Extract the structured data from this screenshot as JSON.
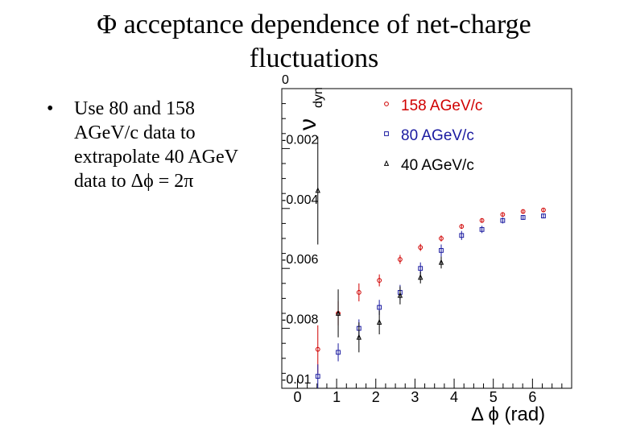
{
  "slide": {
    "title_line1": "Φ acceptance dependence of net-charge",
    "title_line2": "fluctuations",
    "bullet_marker": "•",
    "bullet_lines": [
      "Use 80 and 158",
      "AGeV/c data to",
      "extrapolate 40 AGeV",
      "data to Δϕ = 2π"
    ]
  },
  "chart_data": {
    "type": "scatter",
    "title": "",
    "ylabel_main": "ν",
    "ylabel_sub": "dyn",
    "xlabel": "Δ ϕ (rad)",
    "xlim": [
      -0.4,
      7.0
    ],
    "ylim": [
      -0.01,
      0.0
    ],
    "x_ticks": [
      0,
      1,
      2,
      3,
      4,
      5,
      6
    ],
    "x_tick_labels": [
      "0",
      "1",
      "2",
      "3",
      "4",
      "5",
      "6"
    ],
    "y_ticks": [
      0,
      -0.002,
      -0.004,
      -0.006,
      -0.008,
      -0.01
    ],
    "y_tick_labels": [
      "0",
      "-0.002",
      "-0.004",
      "-0.006",
      "-0.008",
      "-0.01"
    ],
    "legend_position": "top-right",
    "series": [
      {
        "name": "158 AGeV/c",
        "color": "#d00000",
        "marker": "circle",
        "x": [
          0.52,
          1.04,
          1.57,
          2.09,
          2.62,
          3.14,
          3.67,
          4.19,
          4.71,
          5.24,
          5.76,
          6.28
        ],
        "y": [
          -0.0087,
          -0.0075,
          -0.0068,
          -0.0064,
          -0.0057,
          -0.0053,
          -0.005,
          -0.0046,
          -0.0044,
          -0.0042,
          -0.0041,
          -0.00405
        ],
        "err": [
          0.0008,
          0.0004,
          0.0003,
          0.0002,
          0.00015,
          0.00012,
          0.0001,
          8e-05,
          7e-05,
          6e-05,
          6e-05,
          5e-05
        ]
      },
      {
        "name": "80 AGeV/c",
        "color": "#1a1aa0",
        "marker": "square",
        "x": [
          0.52,
          1.04,
          1.57,
          2.09,
          2.62,
          3.14,
          3.67,
          4.19,
          4.71,
          5.24,
          5.76,
          6.28
        ],
        "y": [
          -0.0096,
          -0.0088,
          -0.008,
          -0.0073,
          -0.0068,
          -0.006,
          -0.0054,
          -0.0049,
          -0.0047,
          -0.0044,
          -0.0043,
          -0.00425
        ],
        "err": [
          0.0004,
          0.0003,
          0.0003,
          0.00025,
          0.00025,
          0.0002,
          0.0002,
          0.00015,
          0.00012,
          0.0001,
          8e-05,
          8e-05
        ]
      },
      {
        "name": "40 AGeV/c",
        "color": "#000000",
        "marker": "triangle",
        "x": [
          0.52,
          1.04,
          1.57,
          2.09,
          2.62,
          3.14,
          3.67
        ],
        "y": [
          -0.0034,
          -0.0075,
          -0.0083,
          -0.0078,
          -0.0069,
          -0.0063,
          -0.0058
        ],
        "err": [
          0.0018,
          0.0008,
          0.0005,
          0.0004,
          0.0003,
          0.0002,
          0.0002
        ]
      }
    ]
  }
}
